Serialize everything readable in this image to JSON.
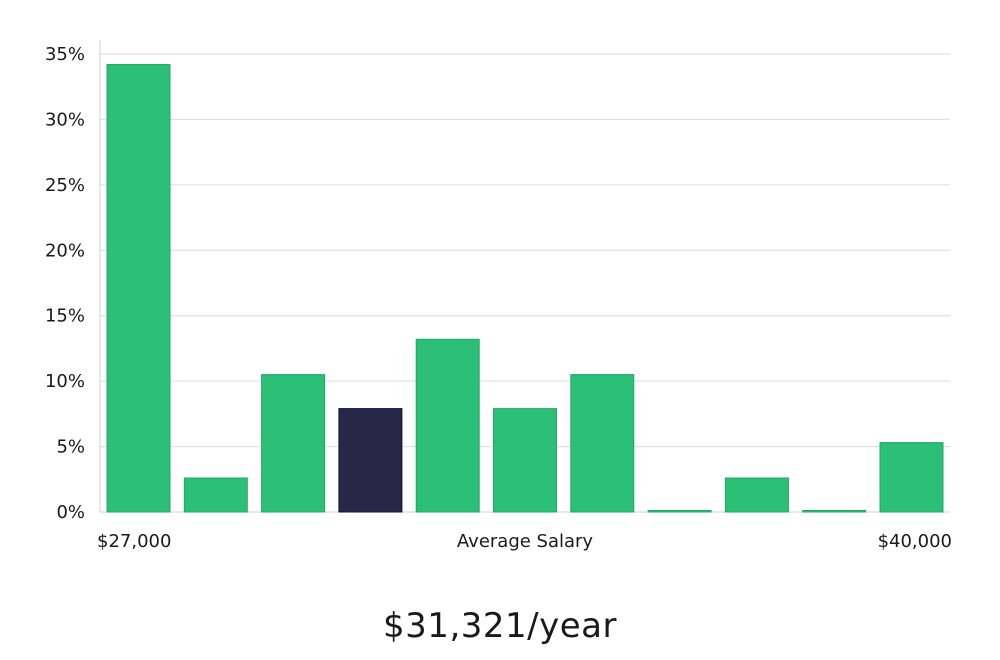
{
  "chart_data": {
    "type": "bar",
    "title": "",
    "xlabel": "Average Salary",
    "x_range_labels": {
      "start": "$27,000",
      "end": "$40,000"
    },
    "ylabel": "",
    "ylim": [
      0,
      35
    ],
    "yticks": [
      0,
      5,
      10,
      15,
      20,
      25,
      30,
      35
    ],
    "ytick_labels": [
      "0%",
      "5%",
      "10%",
      "15%",
      "20%",
      "25%",
      "30%",
      "35%"
    ],
    "grid": true,
    "values": [
      34.2,
      2.6,
      10.5,
      7.9,
      13.2,
      7.9,
      10.5,
      0,
      2.6,
      0,
      5.3
    ],
    "highlight_index": 3,
    "colors": {
      "bar": "#2bbf77",
      "bar_border": "#23a866",
      "highlight": "#29264a",
      "highlight_border": "#14122e",
      "grid": "#dcdcdc",
      "axis": "#d0d0d0"
    }
  },
  "summary": {
    "average_salary": "$31,321/year"
  }
}
